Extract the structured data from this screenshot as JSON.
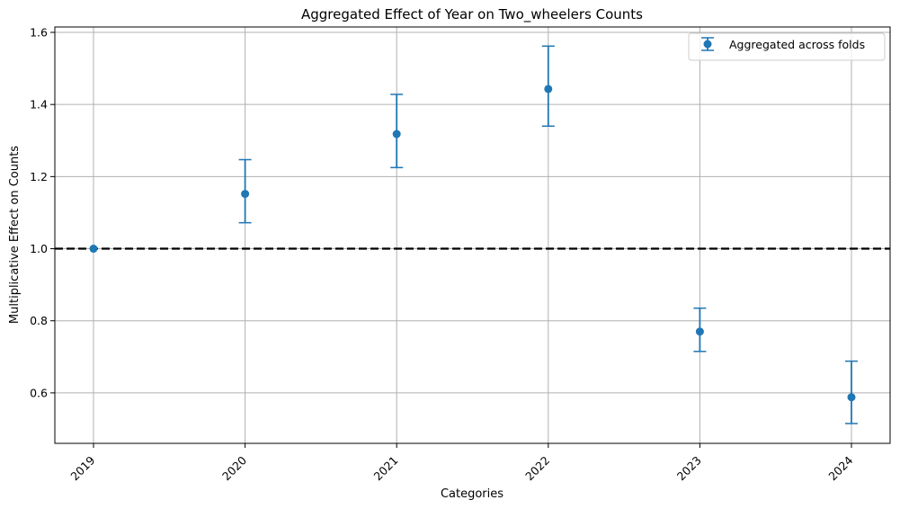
{
  "chart_data": {
    "type": "scatter",
    "title": "Aggregated Effect of Year on Two_wheelers Counts",
    "xlabel": "Categories",
    "ylabel": "Multiplicative Effect on Counts",
    "categories": [
      "2019",
      "2020",
      "2021",
      "2022",
      "2023",
      "2024"
    ],
    "series": [
      {
        "name": "Aggregated across folds",
        "values": [
          1.0,
          1.152,
          1.318,
          1.443,
          0.77,
          0.588
        ],
        "lower": [
          1.0,
          1.072,
          1.225,
          1.34,
          0.715,
          0.515
        ],
        "upper": [
          1.0,
          1.247,
          1.428,
          1.562,
          0.835,
          0.688
        ]
      }
    ],
    "reference_line": 1.0,
    "ylim": [
      0.46,
      1.615
    ],
    "yticks": [
      0.6,
      0.8,
      1.0,
      1.2,
      1.4,
      1.6
    ],
    "grid": true,
    "legend_position": "top-right",
    "colors": {
      "series": "#1f77b4",
      "reference": "#000000",
      "grid": "#b0b0b0"
    }
  }
}
